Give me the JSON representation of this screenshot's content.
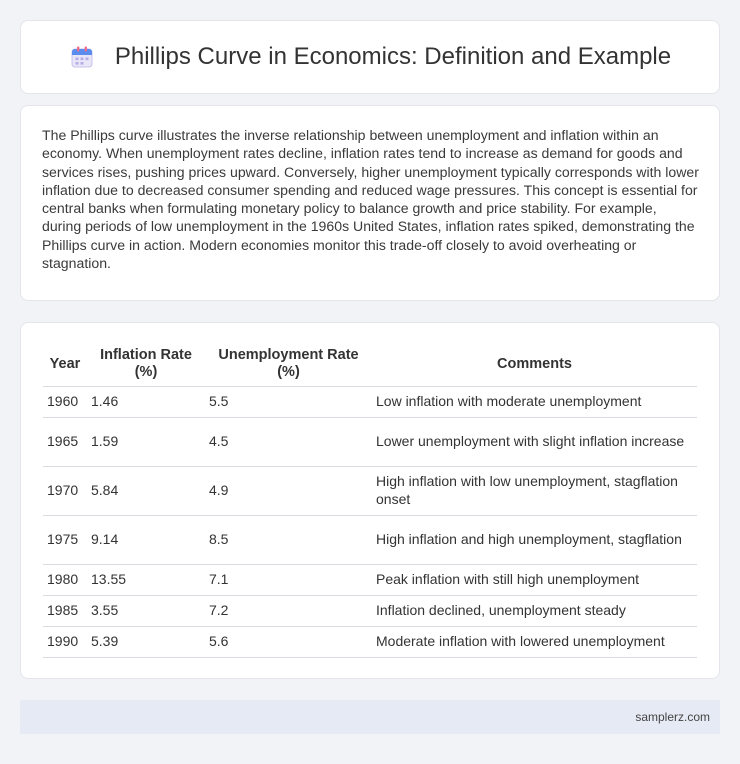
{
  "header": {
    "title": "Phillips Curve in Economics: Definition and Example",
    "icon": "calendar-icon"
  },
  "intro": {
    "text": "The Phillips curve illustrates the inverse relationship between unemployment and inflation within an economy. When unemployment rates decline, inflation rates tend to increase as demand for goods and services rises, pushing prices upward. Conversely, higher unemployment typically corresponds with lower inflation due to decreased consumer spending and reduced wage pressures. This concept is essential for central banks when formulating monetary policy to balance growth and price stability. For example, during periods of low unemployment in the 1960s United States, inflation rates spiked, demonstrating the Phillips curve in action. Modern economies monitor this trade-off closely to avoid overheating or stagnation."
  },
  "table": {
    "headers": [
      "Year",
      "Inflation Rate (%)",
      "Unemployment Rate (%)",
      "Comments"
    ],
    "rows": [
      {
        "year": "1960",
        "inflation": "1.46",
        "unemployment": "5.5",
        "comment": "Low inflation with moderate unemployment"
      },
      {
        "year": "1965",
        "inflation": "1.59",
        "unemployment": "4.5",
        "comment": "Lower unemployment with slight inflation increase"
      },
      {
        "year": "1970",
        "inflation": "5.84",
        "unemployment": "4.9",
        "comment": "High inflation with low unemployment, stagflation onset"
      },
      {
        "year": "1975",
        "inflation": "9.14",
        "unemployment": "8.5",
        "comment": "High inflation and high unemployment, stagflation"
      },
      {
        "year": "1980",
        "inflation": "13.55",
        "unemployment": "7.1",
        "comment": "Peak inflation with still high unemployment"
      },
      {
        "year": "1985",
        "inflation": "3.55",
        "unemployment": "7.2",
        "comment": "Inflation declined, unemployment steady"
      },
      {
        "year": "1990",
        "inflation": "5.39",
        "unemployment": "5.6",
        "comment": "Moderate inflation with lowered unemployment"
      }
    ]
  },
  "footer": {
    "source": "samplerz.com"
  }
}
